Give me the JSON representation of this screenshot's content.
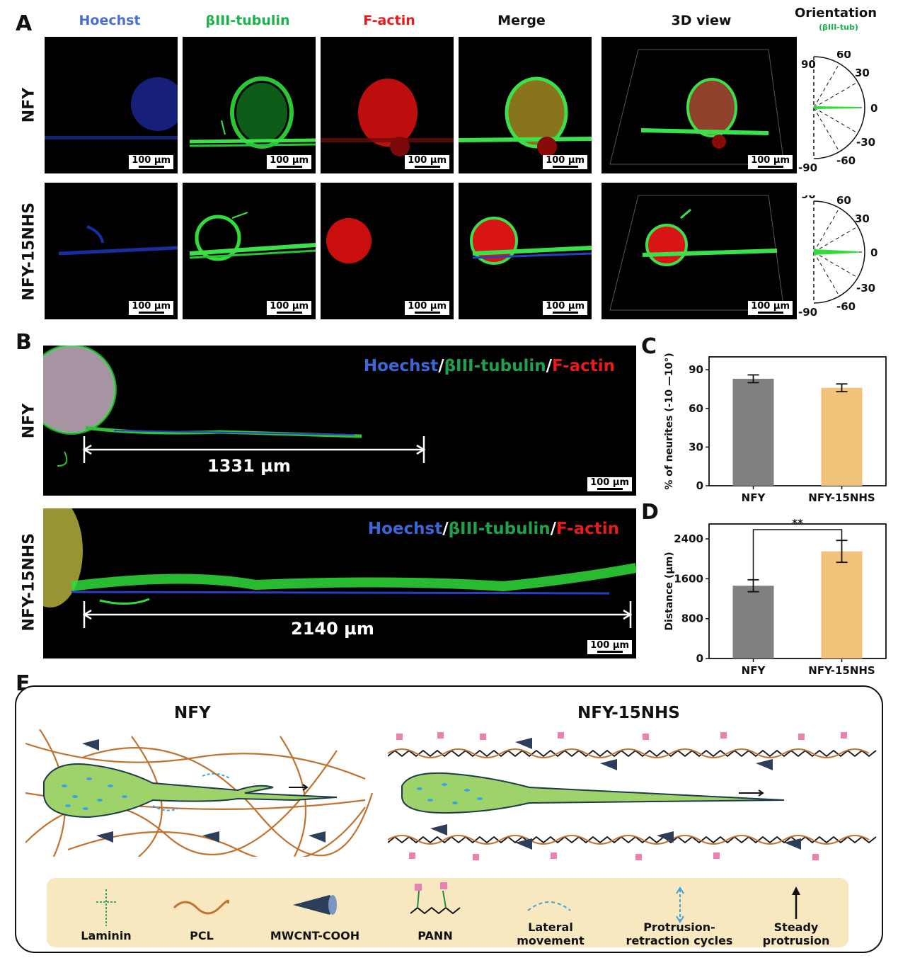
{
  "panel_a": {
    "letter": "A",
    "column_headers": [
      {
        "label": "Hoechst",
        "color": "#4a6fd0"
      },
      {
        "label": "βIII-tubulin",
        "color": "#19b34a"
      },
      {
        "label": "F-actin",
        "color": "#e41b1b"
      },
      {
        "label": "Merge",
        "color": "#111111"
      },
      {
        "label": "3D view",
        "color": "#111111"
      }
    ],
    "orientation_title": "Orientation",
    "orientation_subtitle": "(βIII-tub)",
    "rows": [
      {
        "label": "NFY"
      },
      {
        "label": "NFY-15NHS"
      }
    ],
    "scale_bar": "100 µm",
    "orientation_ticks": [
      "90",
      "60",
      "30",
      "0",
      "-30",
      "-60",
      "-90"
    ]
  },
  "panel_b": {
    "letter": "B",
    "rows": [
      {
        "label": "NFY",
        "length": "1331 µm"
      },
      {
        "label": "NFY-15NHS",
        "length": "2140 µm"
      }
    ],
    "stain_parts": [
      {
        "text": "Hoechst",
        "color": "#3f66d6"
      },
      {
        "text": "/",
        "color": "#ffffff"
      },
      {
        "text": "βIII-tubulin",
        "color": "#1fa24a"
      },
      {
        "text": "/",
        "color": "#ffffff"
      },
      {
        "text": "F-actin",
        "color": "#e61c1c"
      }
    ],
    "scale_bar": "100 µm"
  },
  "panel_c": {
    "letter": "C"
  },
  "panel_d": {
    "letter": "D"
  },
  "chart_data": [
    {
      "type": "bar",
      "panel": "C",
      "categories": [
        "NFY",
        "NFY-15NHS"
      ],
      "values": [
        83,
        76
      ],
      "errors": [
        3,
        3
      ],
      "colors": [
        "#808080",
        "#f0c27a"
      ],
      "ylabel": "% of neurites (-10 —10°)",
      "xlabel": "",
      "ylim": [
        0,
        100
      ],
      "yticks": [
        0,
        30,
        60,
        90
      ]
    },
    {
      "type": "bar",
      "panel": "D",
      "categories": [
        "NFY",
        "NFY-15NHS"
      ],
      "values": [
        1460,
        2150
      ],
      "errors": [
        120,
        220
      ],
      "colors": [
        "#808080",
        "#f0c27a"
      ],
      "ylabel": "Distance (µm)",
      "xlabel": "",
      "ylim": [
        0,
        2700
      ],
      "yticks": [
        0,
        800,
        1600,
        2400
      ],
      "significance": "**"
    }
  ],
  "panel_e": {
    "letter": "E",
    "left_title": "NFY",
    "right_title": "NFY-15NHS",
    "legend": [
      {
        "name": "laminin-icon",
        "label": "Laminin"
      },
      {
        "name": "pcl-icon",
        "label": "PCL"
      },
      {
        "name": "mwcnt-icon",
        "label": "MWCNT-COOH"
      },
      {
        "name": "pann-icon",
        "label": "PANN"
      },
      {
        "name": "lateral-movement-icon",
        "label": "Lateral movement"
      },
      {
        "name": "protrusion-icon",
        "label": "Protrusion-retraction cycles"
      },
      {
        "name": "steady-protrusion-icon",
        "label": "Steady protrusion"
      }
    ]
  }
}
